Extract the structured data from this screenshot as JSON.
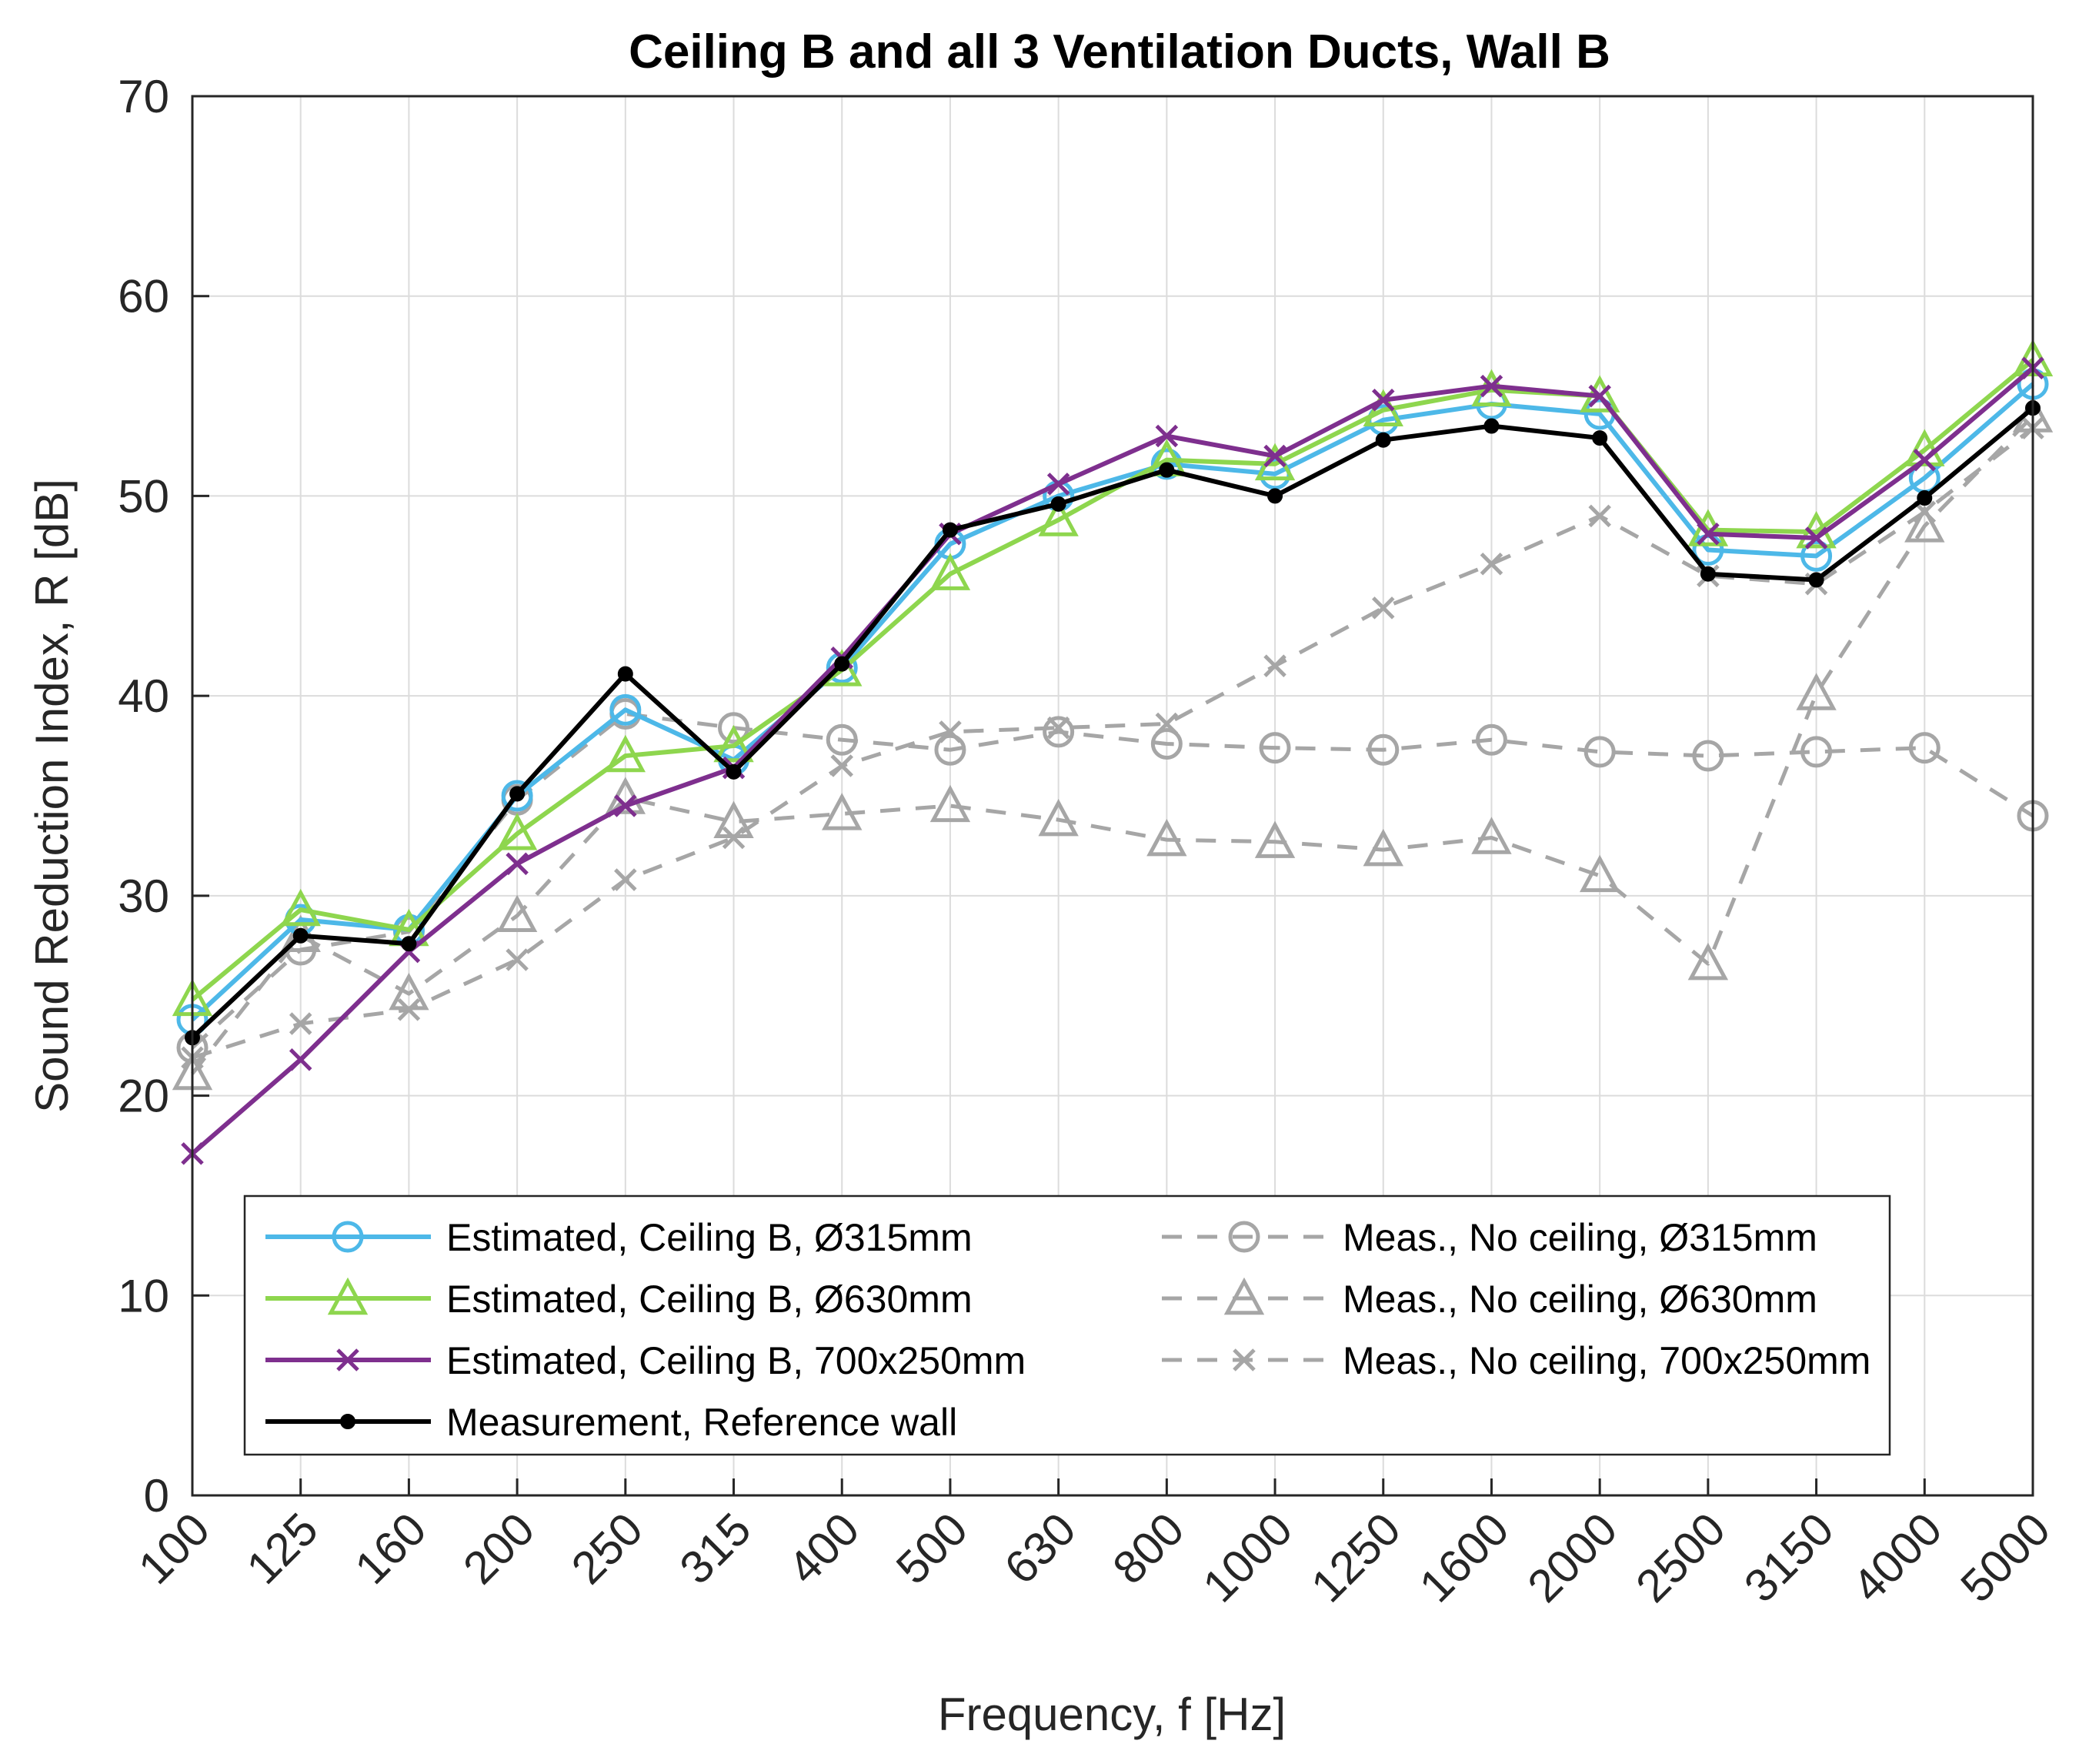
{
  "chart_data": {
    "type": "line",
    "title": "Ceiling B and all 3 Ventilation Ducts, Wall B",
    "xlabel": "Frequency, f [Hz]",
    "ylabel": "Sound Reduction Index, R [dB]",
    "categories": [
      "100",
      "125",
      "160",
      "200",
      "250",
      "315",
      "400",
      "500",
      "630",
      "800",
      "1000",
      "1250",
      "1600",
      "2000",
      "2500",
      "3150",
      "4000",
      "5000"
    ],
    "ylim": [
      0,
      70
    ],
    "yticks": [
      "0",
      "10",
      "20",
      "30",
      "40",
      "50",
      "60",
      "70"
    ],
    "grid": true,
    "legend_position": "bottom",
    "series": [
      {
        "name": "Estimated, Ceiling B, Ø315mm",
        "color": "#4db8e8",
        "dash": "solid",
        "marker": "circle",
        "values": [
          23.8,
          28.8,
          28.3,
          35.0,
          39.3,
          36.8,
          41.4,
          47.6,
          50.0,
          51.6,
          51.1,
          53.8,
          54.6,
          54.1,
          47.3,
          47.0,
          50.9,
          55.6
        ]
      },
      {
        "name": "Estimated, Ceiling B, Ø630mm",
        "color": "#8ed64e",
        "dash": "solid",
        "marker": "triangle",
        "values": [
          24.8,
          29.3,
          28.3,
          33.1,
          37.0,
          37.5,
          41.3,
          46.1,
          48.8,
          51.8,
          51.6,
          54.3,
          55.3,
          55.0,
          48.3,
          48.2,
          52.3,
          56.8
        ]
      },
      {
        "name": "Estimated, Ceiling B, 700x250mm",
        "color": "#7e2f8e",
        "dash": "solid",
        "marker": "x",
        "values": [
          17.1,
          21.8,
          27.2,
          31.6,
          34.5,
          36.4,
          41.9,
          48.1,
          50.6,
          53.0,
          52.0,
          54.8,
          55.5,
          55.0,
          48.1,
          47.9,
          51.8,
          56.4
        ]
      },
      {
        "name": "Measurement, Reference wall",
        "color": "#000000",
        "dash": "solid",
        "marker": "dot",
        "values": [
          22.9,
          28.0,
          27.6,
          35.1,
          41.1,
          36.2,
          41.6,
          48.3,
          49.6,
          51.3,
          50.0,
          52.8,
          53.5,
          52.9,
          46.1,
          45.8,
          49.9,
          54.4
        ]
      },
      {
        "name": "Meas., No ceiling, Ø315mm",
        "color": "#a6a6a6",
        "dash": "dashed",
        "marker": "circle",
        "values": [
          22.4,
          27.3,
          28.2,
          34.8,
          39.1,
          38.4,
          37.8,
          37.3,
          38.2,
          37.6,
          37.4,
          37.3,
          37.8,
          37.2,
          37.0,
          37.2,
          37.4,
          34.0
        ]
      },
      {
        "name": "Meas., No ceiling, Ø630mm",
        "color": "#a6a6a6",
        "dash": "dashed",
        "marker": "triangle",
        "values": [
          21.1,
          28.0,
          25.1,
          29.0,
          34.9,
          33.7,
          34.1,
          34.5,
          33.8,
          32.8,
          32.7,
          32.3,
          32.9,
          31.0,
          26.6,
          40.1,
          48.5,
          54.0
        ]
      },
      {
        "name": "Meas., No ceiling, 700x250mm",
        "color": "#a6a6a6",
        "dash": "dashed",
        "marker": "x",
        "values": [
          21.9,
          23.6,
          24.3,
          26.8,
          30.8,
          32.9,
          36.5,
          38.2,
          38.4,
          38.6,
          41.5,
          44.4,
          46.6,
          49.0,
          46.0,
          45.6,
          49.2,
          53.4
        ]
      }
    ]
  }
}
